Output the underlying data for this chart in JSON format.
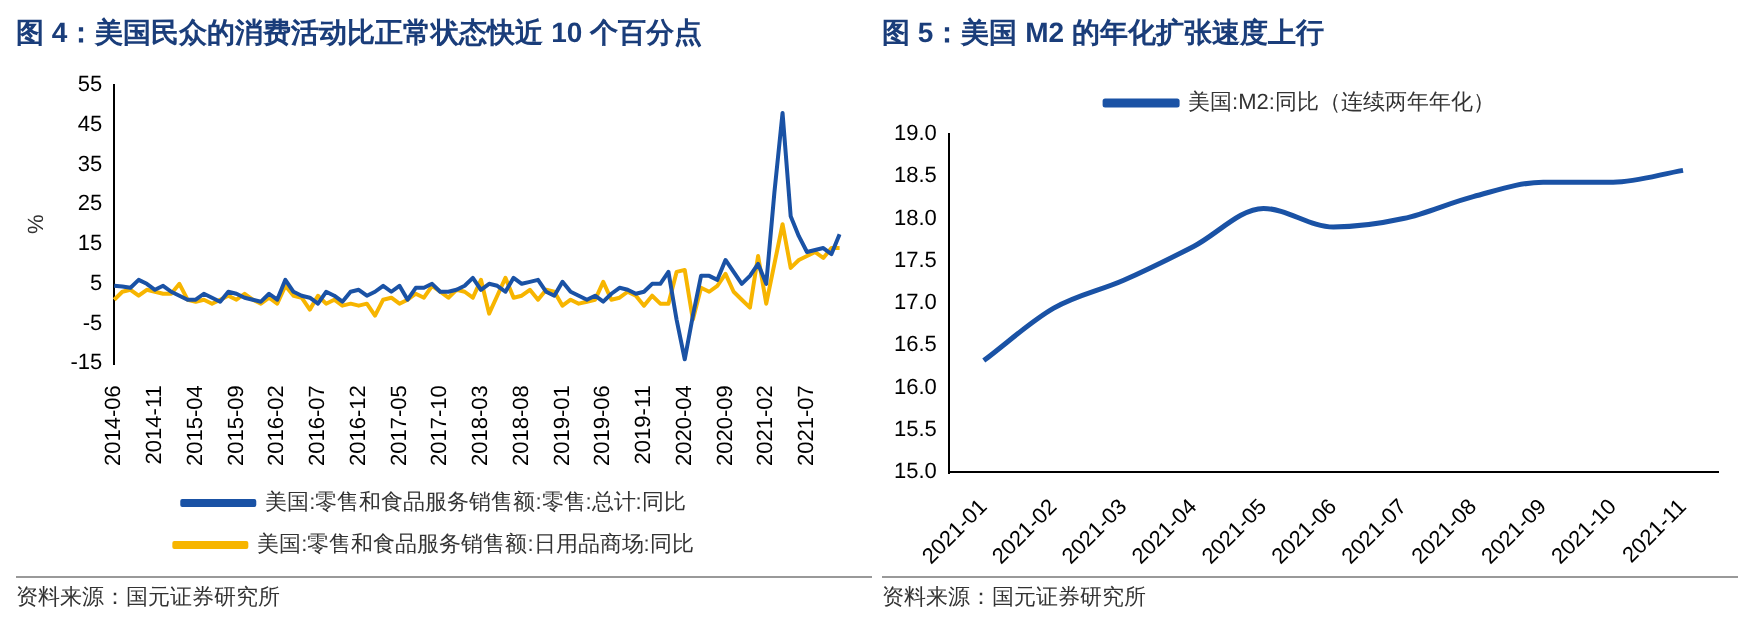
{
  "chart_data": [
    {
      "type": "line",
      "title": "图 4：美国民众的消费活动比正常状态快近 10 个百分点",
      "ylabel": "%",
      "categories": [
        "2014-06",
        null,
        null,
        null,
        null,
        "2014-11",
        null,
        null,
        null,
        null,
        "2015-04",
        null,
        null,
        null,
        null,
        "2015-09",
        null,
        null,
        null,
        null,
        "2016-02",
        null,
        null,
        null,
        null,
        "2016-07",
        null,
        null,
        null,
        null,
        "2016-12",
        null,
        null,
        null,
        null,
        "2017-05",
        null,
        null,
        null,
        null,
        "2017-10",
        null,
        null,
        null,
        null,
        "2018-03",
        null,
        null,
        null,
        null,
        "2018-08",
        null,
        null,
        null,
        null,
        "2019-01",
        null,
        null,
        null,
        null,
        "2019-06",
        null,
        null,
        null,
        null,
        "2019-11",
        null,
        null,
        null,
        null,
        "2020-04",
        null,
        null,
        null,
        null,
        "2020-09",
        null,
        null,
        null,
        null,
        "2021-02",
        null,
        null,
        null,
        null,
        "2021-07",
        null,
        null,
        null,
        null
      ],
      "series": [
        {
          "name": "美国:零售和食品服务销售额:零售:总计:同比",
          "color": "#1a52a5",
          "values": [
            4.5,
            4.3,
            4,
            6,
            5,
            3.5,
            4.5,
            3,
            2,
            1,
            1,
            2.5,
            1.5,
            0.5,
            3,
            2.5,
            1.5,
            1,
            0.5,
            2.5,
            1,
            6,
            3,
            2,
            1.5,
            0,
            3,
            2,
            0.5,
            3,
            3.5,
            2,
            3,
            4.5,
            3,
            4.5,
            1,
            4,
            4,
            5,
            3,
            3,
            3.5,
            4.5,
            6.5,
            3.5,
            5,
            4.5,
            3,
            6.5,
            5,
            5.5,
            6,
            3,
            2,
            5.5,
            3,
            2,
            1,
            2,
            0.5,
            2.5,
            4,
            3.5,
            2.5,
            3,
            5,
            5,
            8,
            -4,
            -14,
            -3,
            7,
            7,
            6,
            11,
            8,
            5,
            7,
            10,
            5,
            28,
            48,
            22,
            17,
            13,
            13.5,
            14,
            12.5,
            17.5
          ]
        },
        {
          "name": "美国:零售和食品服务销售额:日用品商场:同比",
          "color": "#f7b500",
          "values": [
            1,
            3,
            3.5,
            2,
            3.5,
            3,
            2.5,
            2.5,
            5,
            1,
            0.5,
            1,
            0,
            1,
            2,
            1,
            2.5,
            1,
            0,
            1.5,
            0,
            4.5,
            2,
            1.5,
            -1.5,
            2,
            0,
            1,
            -0.5,
            0,
            -0.5,
            0,
            -3,
            1,
            1.5,
            0,
            1,
            2.5,
            1.5,
            4.5,
            3,
            1.5,
            3.5,
            3,
            1.5,
            6,
            -2.5,
            2,
            6.5,
            1.5,
            2,
            3.5,
            1,
            3.5,
            3,
            -0.5,
            1,
            0,
            0.5,
            1,
            5.5,
            1,
            1.5,
            3,
            2,
            -0.5,
            2,
            0,
            0,
            8,
            8.5,
            -4,
            4,
            3,
            4.5,
            7.5,
            3,
            1,
            -1,
            12,
            0,
            10,
            20,
            9,
            11,
            12,
            13,
            11.5,
            14,
            14
          ]
        }
      ],
      "ylim": [
        -15,
        55
      ],
      "yticks": [
        -15,
        -5,
        5,
        15,
        25,
        35,
        45,
        55
      ],
      "legend": "bottom",
      "annotations": [
        "资料来源：国元证券研究所"
      ]
    },
    {
      "type": "line",
      "title": "图 5：美国 M2 的年化扩张速度上行",
      "categories": [
        "2021-01",
        "2021-02",
        "2021-03",
        "2021-04",
        "2021-05",
        "2021-06",
        "2021-07",
        "2021-08",
        "2021-09",
        "2021-10",
        "2021-11"
      ],
      "series": [
        {
          "name": "美国:M2:同比（连续两年年化）",
          "color": "#1a52a5",
          "values": [
            16.32,
            16.94,
            17.27,
            17.67,
            18.12,
            17.9,
            18.0,
            18.26,
            18.43,
            18.43,
            18.57
          ]
        }
      ],
      "ylim": [
        15,
        19
      ],
      "yticks": [
        {
          "value": 15,
          "label": "15.0"
        },
        {
          "value": 15.5,
          "label": "15.5"
        },
        {
          "value": 16,
          "label": "16.0"
        },
        {
          "value": 16.5,
          "label": "16.5"
        },
        {
          "value": 17,
          "label": "17.0"
        },
        {
          "value": 17.5,
          "label": "17.5"
        },
        {
          "value": 18,
          "label": "18.0"
        },
        {
          "value": 18.5,
          "label": "18.5"
        },
        {
          "value": 19,
          "label": "19.0"
        }
      ],
      "legend": "top",
      "annotations": [
        "资料来源：国元证券研究所"
      ]
    }
  ]
}
